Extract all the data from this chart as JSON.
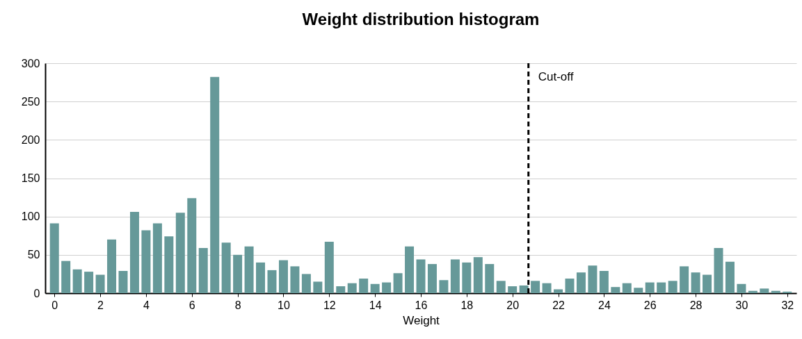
{
  "chart_data": {
    "type": "bar",
    "title": "Weight distribution histogram",
    "xlabel": "Weight",
    "x": [
      0,
      0.5,
      1,
      1.5,
      2,
      2.5,
      3,
      3.5,
      4,
      4.5,
      5,
      5.5,
      6,
      6.5,
      7,
      7.5,
      8,
      8.5,
      9,
      9.5,
      10,
      10.5,
      11,
      11.5,
      12,
      12.5,
      13,
      13.5,
      14,
      14.5,
      15,
      15.5,
      16,
      16.5,
      17,
      17.5,
      18,
      18.5,
      19,
      19.5,
      20,
      20.5,
      21,
      21.5,
      22,
      22.5,
      23,
      23.5,
      24,
      24.5,
      25,
      25.5,
      26,
      26.5,
      27,
      27.5,
      28,
      28.5,
      29,
      29.5,
      30,
      30.5,
      31,
      31.5,
      32
    ],
    "values": [
      91,
      42,
      31,
      28,
      24,
      70,
      29,
      106,
      82,
      91,
      74,
      105,
      124,
      59,
      282,
      66,
      50,
      61,
      40,
      30,
      43,
      35,
      25,
      15,
      67,
      9,
      13,
      19,
      12,
      14,
      26,
      61,
      44,
      38,
      17,
      44,
      40,
      47,
      38,
      16,
      9,
      10,
      16,
      13,
      5,
      19,
      27,
      36,
      29,
      8,
      13,
      7,
      14,
      14,
      16,
      35,
      27,
      24,
      59,
      41,
      12,
      3,
      6,
      3,
      2
    ],
    "color": "#669999",
    "xlim": [
      -0.25,
      32.25
    ],
    "xticks": [
      0,
      2,
      4,
      6,
      8,
      10,
      12,
      14,
      16,
      18,
      20,
      22,
      24,
      26,
      28,
      30,
      32
    ],
    "ylim": [
      0,
      300
    ],
    "yticks": [
      0,
      50,
      100,
      150,
      200,
      250,
      300
    ],
    "grid": "y",
    "ref_lines": [
      {
        "axis": "x",
        "value": 20.7,
        "label": "Cut-off",
        "color": "#000000",
        "line_style": "dashed"
      }
    ]
  }
}
